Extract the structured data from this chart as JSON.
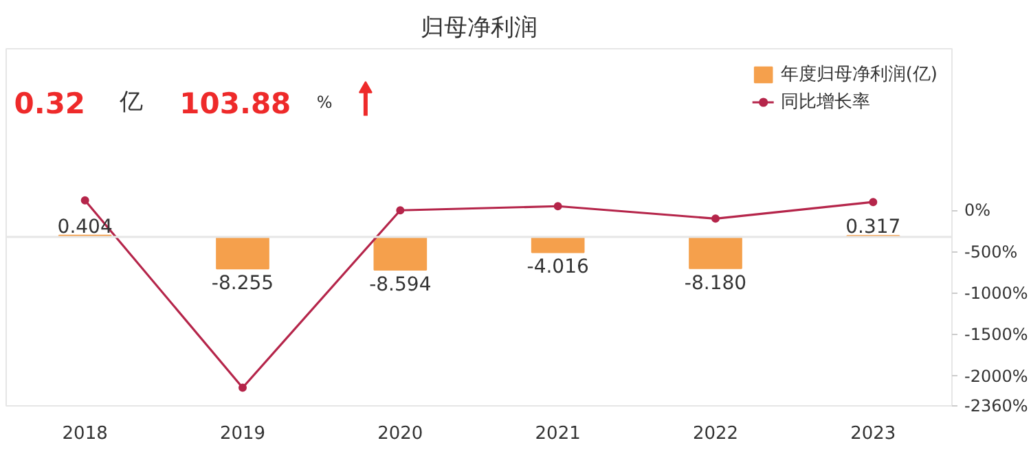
{
  "chart_data": {
    "type": "bar",
    "title": "归母净利润",
    "annotations": [
      "0.32",
      "亿",
      "103.88",
      "%"
    ],
    "categories": [
      "2018",
      "2019",
      "2020",
      "2021",
      "2022",
      "2023"
    ],
    "series": [
      {
        "name": "年度归母净利润(亿)",
        "color": "#f5a04c",
        "values": [
          0.404,
          -8.255,
          -8.594,
          -4.016,
          -8.18,
          0.317
        ],
        "value_labels": [
          "0.404",
          "-8.255",
          "-8.594",
          "-4.016",
          "-8.180",
          "0.317"
        ]
      },
      {
        "name": "同比增长率",
        "type": "line",
        "axis": "y2",
        "color": "#b5254a",
        "marker": "circle",
        "values": [
          120,
          -2140,
          0,
          50,
          -100,
          100
        ]
      }
    ],
    "ylim": [
      -44,
      49
    ],
    "y2lim": [
      -2360,
      1950
    ],
    "y2ticks": [
      {
        "value": 0,
        "label": "0%"
      },
      {
        "value": -500,
        "label": "-500%"
      },
      {
        "value": -1000,
        "label": "-1000%"
      },
      {
        "value": -1500,
        "label": "-1500%"
      },
      {
        "value": -2000,
        "label": "-2000%"
      },
      {
        "value": -2360,
        "label": "-2360%"
      }
    ],
    "tick_labels": "xy2",
    "grid": false,
    "legend": "top right"
  }
}
